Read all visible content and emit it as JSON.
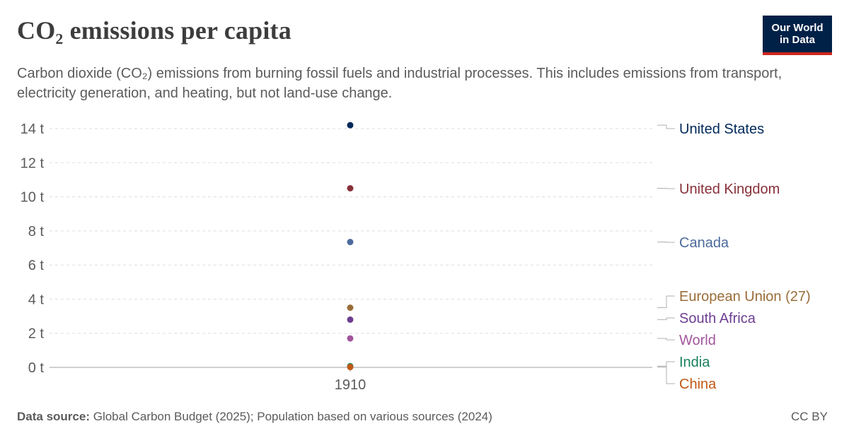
{
  "header": {
    "title": "CO₂ emissions per capita",
    "subtitle": "Carbon dioxide (CO₂) emissions from burning fossil fuels and industrial processes. This includes emissions from transport, electricity generation, and heating, but not land-use change."
  },
  "logo": {
    "line1": "Our World",
    "line2": "in Data",
    "bg_color": "#002147",
    "accent_color": "#ce261e"
  },
  "footer": {
    "source_label": "Data source:",
    "source_text": "Global Carbon Budget (2025); Population based on various sources (2024)",
    "license": "CC BY"
  },
  "chart_data": {
    "type": "scatter",
    "x": [
      "1910"
    ],
    "ylim": [
      0,
      14
    ],
    "y_ticks": [
      0,
      2,
      4,
      6,
      8,
      10,
      12,
      14
    ],
    "y_tick_labels": [
      "0 t",
      "2 t",
      "4 t",
      "6 t",
      "8 t",
      "10 t",
      "12 t",
      "14 t"
    ],
    "grid": true,
    "legend_placement": "right",
    "series": [
      {
        "name": "United States",
        "values": [
          14.2
        ],
        "color": "#00295b"
      },
      {
        "name": "United Kingdom",
        "values": [
          10.5
        ],
        "color": "#883039"
      },
      {
        "name": "Canada",
        "values": [
          7.35
        ],
        "color": "#4c6a9c"
      },
      {
        "name": "European Union (27)",
        "values": [
          3.5
        ],
        "color": "#996d39"
      },
      {
        "name": "South Africa",
        "values": [
          2.8
        ],
        "color": "#6d3e91"
      },
      {
        "name": "World",
        "values": [
          1.7
        ],
        "color": "#a2559c"
      },
      {
        "name": "India",
        "values": [
          0.07
        ],
        "color": "#18805e"
      },
      {
        "name": "China",
        "values": [
          0.02
        ],
        "color": "#c05917"
      }
    ]
  }
}
